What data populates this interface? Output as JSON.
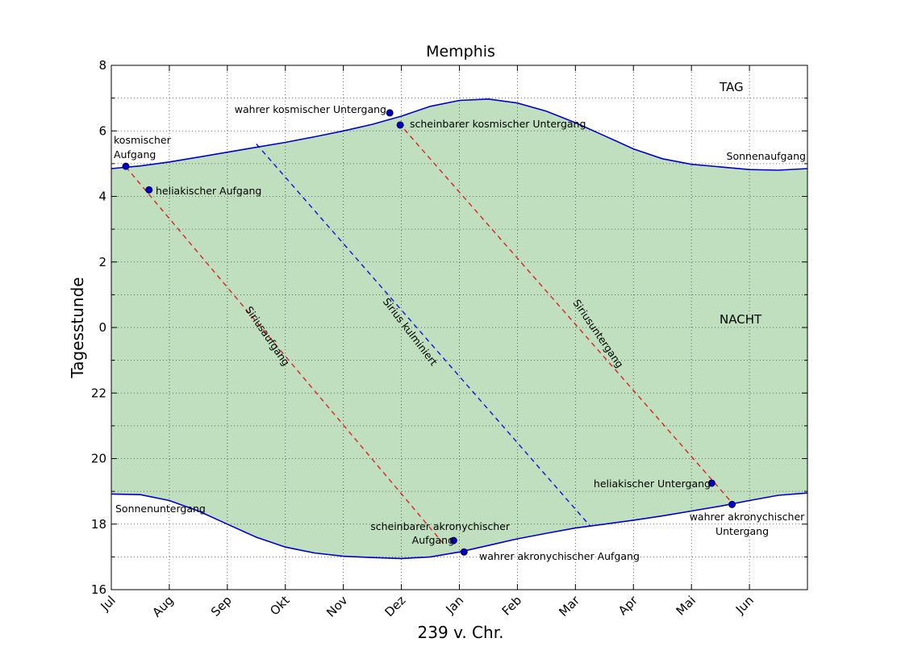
{
  "chart_data": {
    "type": "line",
    "title": "Memphis",
    "xlabel": "239 v. Chr.",
    "ylabel": "Tagesstunde",
    "x_axis": {
      "unit": "month",
      "range_months": [
        0,
        12
      ],
      "tick_labels": [
        "Jul",
        "Aug",
        "Sep",
        "Okt",
        "Nov",
        "Dez",
        "Jan",
        "Feb",
        "Mar",
        "Apr",
        "Mai",
        "Jun"
      ],
      "tick_rotation_deg": -45
    },
    "y_axis": {
      "range": [
        16,
        32
      ],
      "major_tick_values": [
        16,
        18,
        20,
        22,
        24,
        26,
        28,
        30,
        32
      ],
      "major_tick_labels": [
        "16",
        "18",
        "20",
        "22",
        "0",
        "2",
        "4",
        "6",
        "8"
      ],
      "minor_step": 1
    },
    "grid": true,
    "fill_color": "#bfdfbf",
    "sunrise_curve": {
      "label": "Sonnenaufgang",
      "color": "#0000cc",
      "points": [
        [
          0,
          28.85
        ],
        [
          0.5,
          28.93
        ],
        [
          1,
          29.05
        ],
        [
          1.5,
          29.2
        ],
        [
          2,
          29.35
        ],
        [
          2.5,
          29.5
        ],
        [
          3,
          29.65
        ],
        [
          3.5,
          29.82
        ],
        [
          4,
          30.0
        ],
        [
          4.5,
          30.2
        ],
        [
          5,
          30.45
        ],
        [
          5.5,
          30.75
        ],
        [
          6,
          30.93
        ],
        [
          6.5,
          30.97
        ],
        [
          7,
          30.85
        ],
        [
          7.5,
          30.6
        ],
        [
          8,
          30.25
        ],
        [
          8.5,
          29.85
        ],
        [
          9,
          29.45
        ],
        [
          9.5,
          29.15
        ],
        [
          10,
          28.98
        ],
        [
          10.5,
          28.9
        ],
        [
          11,
          28.82
        ],
        [
          11.5,
          28.8
        ],
        [
          12,
          28.85
        ]
      ]
    },
    "sunset_curve": {
      "label": "Sonnenuntergang",
      "color": "#0000cc",
      "points": [
        [
          0,
          18.92
        ],
        [
          0.5,
          18.9
        ],
        [
          1,
          18.72
        ],
        [
          1.5,
          18.4
        ],
        [
          2,
          18.0
        ],
        [
          2.5,
          17.6
        ],
        [
          3,
          17.3
        ],
        [
          3.5,
          17.12
        ],
        [
          4,
          17.02
        ],
        [
          4.5,
          16.98
        ],
        [
          5,
          16.95
        ],
        [
          5.5,
          17.0
        ],
        [
          6,
          17.15
        ],
        [
          6.5,
          17.35
        ],
        [
          7,
          17.55
        ],
        [
          7.5,
          17.72
        ],
        [
          8,
          17.88
        ],
        [
          8.5,
          18.0
        ],
        [
          9,
          18.12
        ],
        [
          9.5,
          18.25
        ],
        [
          10,
          18.4
        ],
        [
          10.5,
          18.55
        ],
        [
          11,
          18.72
        ],
        [
          11.5,
          18.88
        ],
        [
          12,
          18.95
        ]
      ]
    },
    "dashed_lines": [
      {
        "label": "Siriusaufgang",
        "color": "#dd2222",
        "points": [
          [
            0.25,
            28.9
          ],
          [
            5.75,
            17.35
          ]
        ]
      },
      {
        "label": "Sirius kulminiert",
        "color": "#1111dd",
        "points": [
          [
            2.5,
            29.6
          ],
          [
            8.25,
            17.95
          ]
        ]
      },
      {
        "label": "Siriusuntergang",
        "color": "#dd2222",
        "points": [
          [
            4.95,
            30.25
          ],
          [
            10.75,
            18.55
          ]
        ]
      }
    ],
    "events": [
      {
        "label": "kosmischer Aufgang",
        "x": 0.25,
        "y": 28.92
      },
      {
        "label": "heliakischer Aufgang",
        "x": 0.65,
        "y": 28.2
      },
      {
        "label": "wahrer kosmischer Untergang",
        "x": 4.8,
        "y": 30.55
      },
      {
        "label": "scheinbarer kosmischer Untergang",
        "x": 4.98,
        "y": 30.18
      },
      {
        "label": "scheinbarer akronychischer Aufgang",
        "x": 5.9,
        "y": 17.5
      },
      {
        "label": "wahrer akronychischer Aufgang",
        "x": 6.08,
        "y": 17.15
      },
      {
        "label": "heliakischer Untergang",
        "x": 10.35,
        "y": 19.25
      },
      {
        "label": "wahrer akronychischer Untergang",
        "x": 10.7,
        "y": 18.6
      }
    ],
    "region_labels": {
      "day": "TAG",
      "night": "NACHT"
    }
  }
}
